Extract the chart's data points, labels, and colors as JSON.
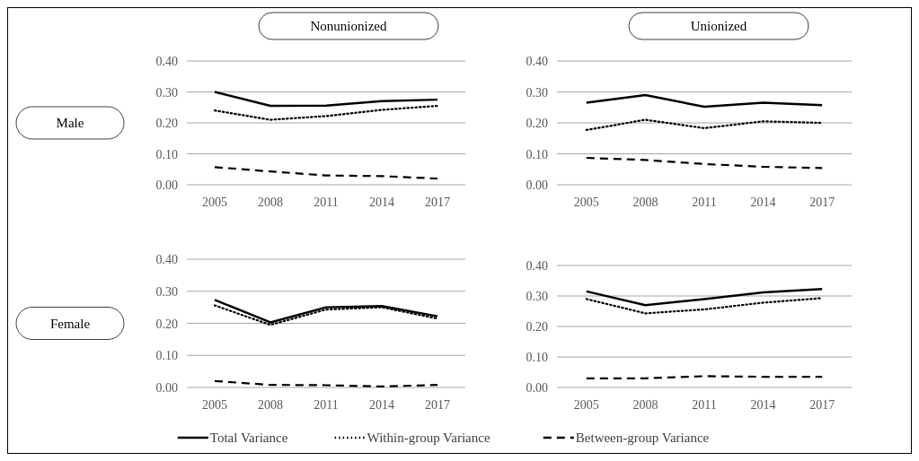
{
  "chart_data": [
    {
      "type": "line",
      "title": "Nonunionized",
      "ylabel": "Male",
      "categories": [
        "2005",
        "2008",
        "2011",
        "2014",
        "2017"
      ],
      "ylim": [
        0,
        0.4
      ],
      "yticks": [
        {
          "value": 0,
          "label": "0.00"
        },
        {
          "value": 0.1,
          "label": "0.10"
        },
        {
          "value": 0.2,
          "label": "0.20"
        },
        {
          "value": 0.3,
          "label": "0.30"
        },
        {
          "value": 0.4,
          "label": "0.40"
        }
      ],
      "grid": "y",
      "legend": "bottom",
      "series": [
        {
          "name": "Total Variance",
          "color": "#000000",
          "line_style": "solid",
          "values": [
            0.3,
            0.255,
            0.256,
            0.27,
            0.275
          ]
        },
        {
          "name": "Within-group Variance",
          "color": "#000000",
          "line_style": "dotted",
          "values": [
            0.24,
            0.21,
            0.222,
            0.242,
            0.255
          ]
        },
        {
          "name": "Between-group Variance",
          "color": "#000000",
          "line_style": "dashed",
          "values": [
            0.057,
            0.043,
            0.03,
            0.028,
            0.02
          ]
        }
      ]
    },
    {
      "type": "line",
      "title": "Unionized",
      "categories": [
        "2005",
        "2008",
        "2011",
        "2014",
        "2017"
      ],
      "ylim": [
        0,
        0.4
      ],
      "yticks": [
        {
          "value": 0,
          "label": "0.00"
        },
        {
          "value": 0.1,
          "label": "0.10"
        },
        {
          "value": 0.2,
          "label": "0.20"
        },
        {
          "value": 0.3,
          "label": "0.30"
        },
        {
          "value": 0.4,
          "label": "0.40"
        }
      ],
      "grid": "y",
      "series": [
        {
          "color": "#000000",
          "line_style": "solid",
          "values": [
            0.265,
            0.29,
            0.252,
            0.265,
            0.257
          ]
        },
        {
          "color": "#000000",
          "line_style": "dotted",
          "values": [
            0.177,
            0.21,
            0.183,
            0.205,
            0.2
          ]
        },
        {
          "color": "#000000",
          "line_style": "dashed",
          "values": [
            0.087,
            0.08,
            0.067,
            0.058,
            0.054
          ]
        }
      ]
    },
    {
      "type": "line",
      "ylabel": "Female",
      "categories": [
        "2005",
        "2008",
        "2011",
        "2014",
        "2017"
      ],
      "ylim": [
        0,
        0.4
      ],
      "yticks": [
        {
          "value": 0,
          "label": "0.00"
        },
        {
          "value": 0.1,
          "label": "0.10"
        },
        {
          "value": 0.2,
          "label": "0.20"
        },
        {
          "value": 0.3,
          "label": "0.30"
        },
        {
          "value": 0.4,
          "label": "0.40"
        }
      ],
      "grid": "y",
      "series": [
        {
          "color": "#000000",
          "line_style": "solid",
          "values": [
            0.273,
            0.203,
            0.25,
            0.254,
            0.222
          ]
        },
        {
          "color": "#000000",
          "line_style": "dotted",
          "values": [
            0.256,
            0.195,
            0.243,
            0.25,
            0.215
          ]
        },
        {
          "color": "#000000",
          "line_style": "dashed",
          "values": [
            0.02,
            0.008,
            0.007,
            0.003,
            0.008
          ]
        }
      ]
    },
    {
      "type": "line",
      "categories": [
        "2005",
        "2008",
        "2011",
        "2014",
        "2017"
      ],
      "ylim": [
        0,
        0.4
      ],
      "yticks": [
        {
          "value": 0,
          "label": "0.00"
        },
        {
          "value": 0.1,
          "label": "0.10"
        },
        {
          "value": 0.2,
          "label": "0.20"
        },
        {
          "value": 0.3,
          "label": "0.30"
        },
        {
          "value": 0.4,
          "label": "0.40"
        }
      ],
      "grid": "y",
      "series": [
        {
          "color": "#000000",
          "line_style": "solid",
          "values": [
            0.315,
            0.27,
            0.29,
            0.312,
            0.323
          ]
        },
        {
          "color": "#000000",
          "line_style": "dotted",
          "values": [
            0.29,
            0.243,
            0.256,
            0.278,
            0.293
          ]
        },
        {
          "color": "#000000",
          "line_style": "dashed",
          "values": [
            0.03,
            0.03,
            0.037,
            0.035,
            0.035
          ]
        }
      ]
    }
  ]
}
